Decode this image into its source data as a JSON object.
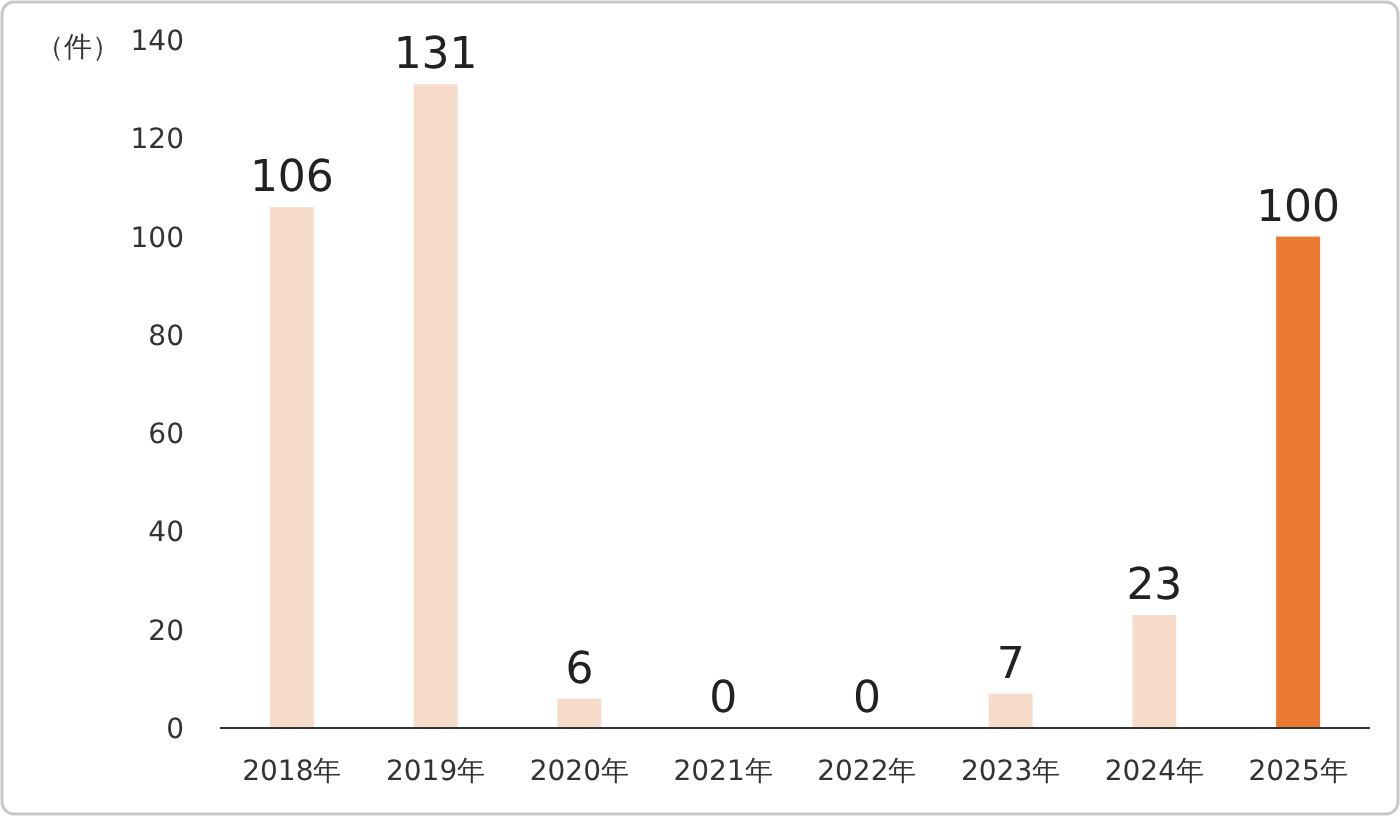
{
  "chart_data": {
    "type": "bar",
    "ylabel": "（件）",
    "categories": [
      "2018年",
      "2019年",
      "2020年",
      "2021年",
      "2022年",
      "2023年",
      "2024年",
      "2025年"
    ],
    "values": [
      106,
      131,
      6,
      0,
      0,
      7,
      23,
      100
    ],
    "colors": [
      "#f8dccb",
      "#f8dccb",
      "#f8dccb",
      "#f8dccb",
      "#f8dccb",
      "#f8dccb",
      "#f8dccb",
      "#e8792e"
    ],
    "ylim": [
      0,
      140
    ],
    "yticks": [
      0,
      20,
      40,
      60,
      80,
      100,
      120,
      140
    ],
    "data_labels": true
  }
}
